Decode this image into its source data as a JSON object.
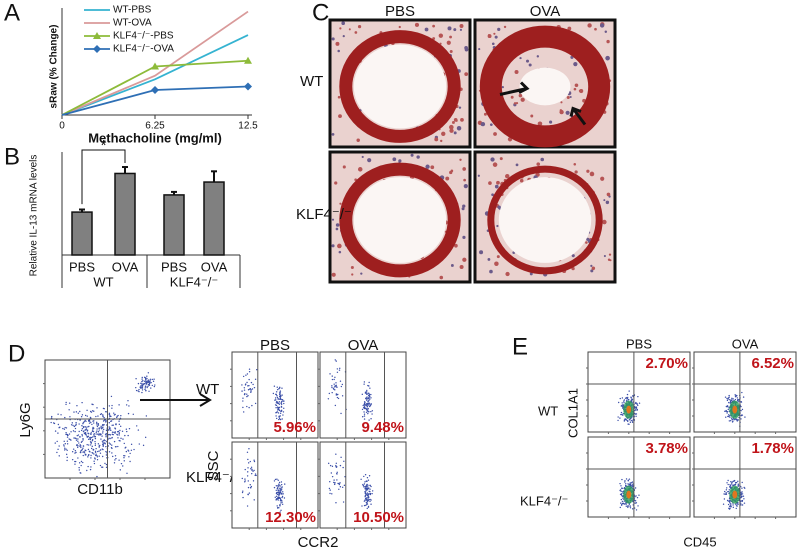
{
  "chart_data": [
    {
      "type": "line",
      "panel": "A",
      "ylabel": "sRaw (% Change)",
      "xlabel": "Methacholine (mg/ml)",
      "x": [
        0,
        6.25,
        12.5
      ],
      "xlim": [
        0,
        12.5
      ],
      "xticks": [
        0,
        6.25,
        12.5
      ],
      "ylim": [
        0,
        150
      ],
      "series": [
        {
          "name": "WT-PBS",
          "color": "#35b3d1",
          "marker": "none",
          "values": [
            0,
            50,
            112
          ]
        },
        {
          "name": "WT-OVA",
          "color": "#d99a9a",
          "marker": "none",
          "values": [
            0,
            55,
            145
          ]
        },
        {
          "name": "KLF4⁻/⁻-PBS",
          "color": "#8dbb3a",
          "marker": "triangle",
          "values": [
            0,
            68,
            76
          ]
        },
        {
          "name": "KLF4⁻/⁻-OVA",
          "color": "#2e6fb5",
          "marker": "diamond",
          "values": [
            0,
            35,
            40
          ]
        }
      ]
    },
    {
      "type": "bar",
      "panel": "B",
      "ylabel": "Relative IL-13 mRNA levels",
      "categories": [
        "PBS",
        "OVA",
        "PBS",
        "OVA"
      ],
      "groups": [
        "WT",
        "KLF4⁻/⁻"
      ],
      "values": [
        1.0,
        1.9,
        1.4,
        1.7
      ],
      "errors": [
        0.06,
        0.15,
        0.07,
        0.25
      ],
      "ylim": [
        0,
        2.4
      ],
      "color": "#808080",
      "significance": "*"
    }
  ],
  "panels": {
    "C": {
      "label": "C",
      "columns": [
        "PBS",
        "OVA"
      ],
      "rows": [
        "WT",
        "KLF4⁻/⁻"
      ]
    },
    "D": {
      "label": "D",
      "gate_ylabel": "Ly6G",
      "gate_xlabel": "CD11b",
      "columns": [
        "PBS",
        "OVA"
      ],
      "rows": [
        "WT",
        "KLF4⁻/⁻"
      ],
      "ylabel": "SSC",
      "xlabel": "CCR2",
      "percentages": [
        [
          "5.96%",
          "9.48%"
        ],
        [
          "12.30%",
          "10.50%"
        ]
      ]
    },
    "E": {
      "label": "E",
      "columns": [
        "PBS",
        "OVA"
      ],
      "rows": [
        "WT",
        "KLF4⁻/⁻"
      ],
      "ylabel": "COL1A1",
      "xlabel": "CD45",
      "percentages": [
        [
          "2.70%",
          "6.52%"
        ],
        [
          "3.78%",
          "1.78%"
        ]
      ]
    }
  }
}
